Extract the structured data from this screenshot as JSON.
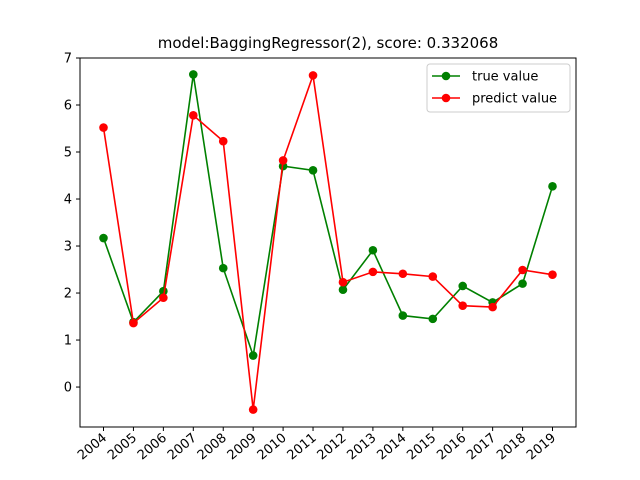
{
  "chart_data": {
    "type": "line",
    "title": "model:BaggingRegressor(2), score: 0.332068",
    "xlabel": "",
    "ylabel": "",
    "categories": [
      "2004",
      "2005",
      "2006",
      "2007",
      "2008",
      "2009",
      "2010",
      "2011",
      "2012",
      "2013",
      "2014",
      "2015",
      "2016",
      "2017",
      "2018",
      "2019"
    ],
    "ylim": [
      -0.85,
      7.0
    ],
    "yticks": [
      0,
      1,
      2,
      3,
      4,
      5,
      6,
      7
    ],
    "grid": false,
    "legend_position": "top-right",
    "series": [
      {
        "name": "true value",
        "color": "#008000",
        "values": [
          3.17,
          1.38,
          2.04,
          6.65,
          2.53,
          0.67,
          4.7,
          4.61,
          2.07,
          2.91,
          1.52,
          1.45,
          2.15,
          1.8,
          2.2,
          4.27
        ]
      },
      {
        "name": "predict value",
        "color": "#ff0000",
        "values": [
          5.52,
          1.36,
          1.9,
          5.78,
          5.23,
          -0.48,
          4.82,
          6.63,
          2.23,
          2.45,
          2.41,
          2.35,
          1.73,
          1.7,
          2.49,
          2.39
        ]
      }
    ]
  }
}
